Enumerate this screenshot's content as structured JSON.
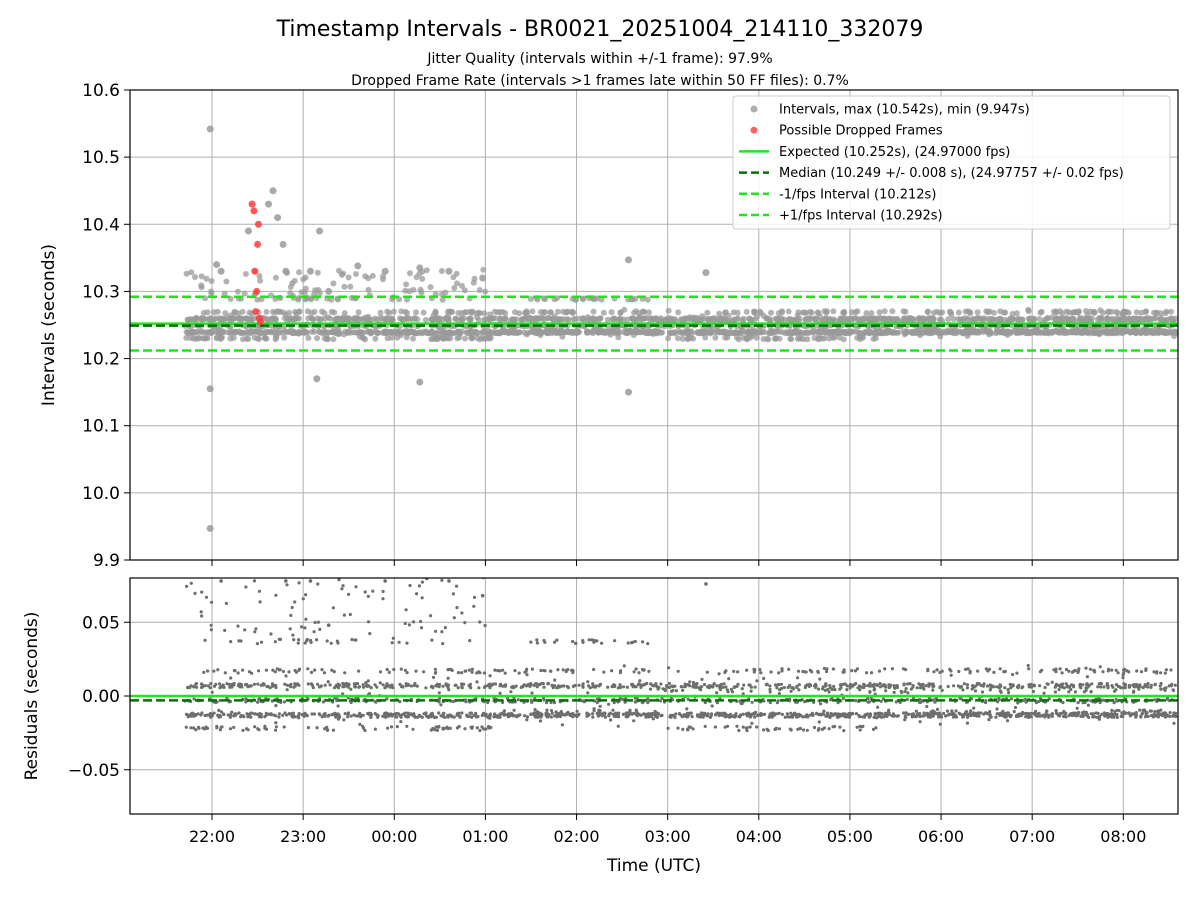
{
  "chart_data": [
    {
      "type": "scatter",
      "title": "Timestamp Intervals - BR0021_20251004_214110_332079",
      "subtitle_lines": [
        "Jitter Quality (intervals within +/-1 frame): 97.9%",
        "Dropped Frame Rate (intervals >1 frames late within 50 FF files): 0.7%"
      ],
      "ylabel": "Intervals (seconds)",
      "ylim": [
        9.9,
        10.6
      ],
      "yticks": [
        "9.9",
        "10.0",
        "10.1",
        "10.2",
        "10.3",
        "10.4",
        "10.5",
        "10.6"
      ],
      "grid": true,
      "legend": {
        "placement": "top-right",
        "entries": [
          {
            "label": "Intervals, max (10.542s), min (9.947s)",
            "marker": "dot",
            "color": "#9a9a9a"
          },
          {
            "label": "Possible Dropped Frames",
            "marker": "dot",
            "color": "#ff3b3b"
          },
          {
            "label": "Expected (10.252s), (24.97000 fps)",
            "marker": "line",
            "color": "#1ee61e",
            "dash": "solid"
          },
          {
            "label": "Median (10.249 +/- 0.008 s), (24.97757 +/- 0.02 fps)",
            "marker": "line",
            "color": "#0a6e0a",
            "dash": "dashed"
          },
          {
            "label": "-1/fps Interval (10.212s)",
            "marker": "line",
            "color": "#1ee61e",
            "dash": "dashed"
          },
          {
            "label": "+1/fps Interval (10.292s)",
            "marker": "line",
            "color": "#1ee61e",
            "dash": "dashed"
          }
        ]
      },
      "reference_lines": {
        "expected": 10.252,
        "median": 10.249,
        "minus_fps": 10.212,
        "plus_fps": 10.292
      },
      "outliers": [
        {
          "x": 21.98,
          "y": 10.542
        },
        {
          "x": 21.98,
          "y": 9.947
        },
        {
          "x": 21.98,
          "y": 10.155
        },
        {
          "x": 22.1,
          "y": 10.33
        },
        {
          "x": 22.05,
          "y": 10.34
        },
        {
          "x": 22.4,
          "y": 10.39
        },
        {
          "x": 22.62,
          "y": 10.43
        },
        {
          "x": 22.67,
          "y": 10.45
        },
        {
          "x": 22.72,
          "y": 10.41
        },
        {
          "x": 22.78,
          "y": 10.37
        },
        {
          "x": 22.81,
          "y": 10.33
        },
        {
          "x": 23.18,
          "y": 10.39
        },
        {
          "x": 23.08,
          "y": 10.33
        },
        {
          "x": 23.15,
          "y": 10.17
        },
        {
          "x": 23.28,
          "y": 10.3
        },
        {
          "x": 23.6,
          "y": 10.338
        },
        {
          "x": 23.9,
          "y": 10.33
        },
        {
          "x": 24.28,
          "y": 10.335
        },
        {
          "x": 24.28,
          "y": 10.165
        },
        {
          "x": 24.6,
          "y": 10.33
        },
        {
          "x": 24.97,
          "y": 10.32
        },
        {
          "x": 26.57,
          "y": 10.347
        },
        {
          "x": 26.57,
          "y": 10.15
        },
        {
          "x": 27.42,
          "y": 10.328
        }
      ],
      "dropped_frames": [
        {
          "x": 22.44,
          "y": 10.43
        },
        {
          "x": 22.46,
          "y": 10.42
        },
        {
          "x": 22.47,
          "y": 10.33
        },
        {
          "x": 22.48,
          "y": 10.27
        },
        {
          "x": 22.5,
          "y": 10.37
        },
        {
          "x": 22.51,
          "y": 10.4
        },
        {
          "x": 22.49,
          "y": 10.3
        },
        {
          "x": 22.52,
          "y": 10.26
        },
        {
          "x": 22.53,
          "y": 10.255
        }
      ]
    },
    {
      "type": "scatter",
      "xlabel": "Time (UTC)",
      "ylabel": "Residuals (seconds)",
      "ylim": [
        -0.08,
        0.08
      ],
      "yticks": [
        "−0.05",
        "0.00",
        "0.05"
      ],
      "xticks": [
        "22:00",
        "23:00",
        "00:00",
        "01:00",
        "02:00",
        "03:00",
        "04:00",
        "05:00",
        "06:00",
        "07:00",
        "08:00"
      ],
      "xrange_hours": [
        21.1,
        32.6
      ],
      "grid": true,
      "reference_lines": {
        "expected": 0.0,
        "median": -0.003
      },
      "residual_bands": [
        -0.022,
        -0.013,
        -0.003,
        0.007,
        0.017,
        0.037
      ]
    }
  ],
  "colors": {
    "points": "#9a9a9a",
    "residual_points": "#6e6e6e",
    "dropped": "#ff3b3b",
    "expected": "#1ee61e",
    "median": "#0a6e0a",
    "grid": "#b0b0b0"
  }
}
